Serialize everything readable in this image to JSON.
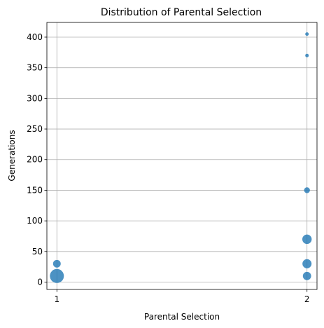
{
  "chart_data": {
    "type": "scatter",
    "title": "Distribution of Parental Selection",
    "xlabel": "Parental Selection",
    "ylabel": "Generations",
    "xlim": [
      0.96,
      2.04
    ],
    "ylim": [
      -12,
      424
    ],
    "xticks": [
      1,
      2
    ],
    "yticks": [
      0,
      50,
      100,
      150,
      200,
      250,
      300,
      350,
      400
    ],
    "grid": true,
    "color": "#1f77b4",
    "alpha": 0.8,
    "points": [
      {
        "x": 1,
        "y": 10,
        "size": 400
      },
      {
        "x": 1,
        "y": 30,
        "size": 120
      },
      {
        "x": 2,
        "y": 10,
        "size": 140
      },
      {
        "x": 2,
        "y": 30,
        "size": 170
      },
      {
        "x": 2,
        "y": 70,
        "size": 180
      },
      {
        "x": 2,
        "y": 150,
        "size": 70
      },
      {
        "x": 2,
        "y": 370,
        "size": 25
      },
      {
        "x": 2,
        "y": 405,
        "size": 25
      }
    ]
  }
}
